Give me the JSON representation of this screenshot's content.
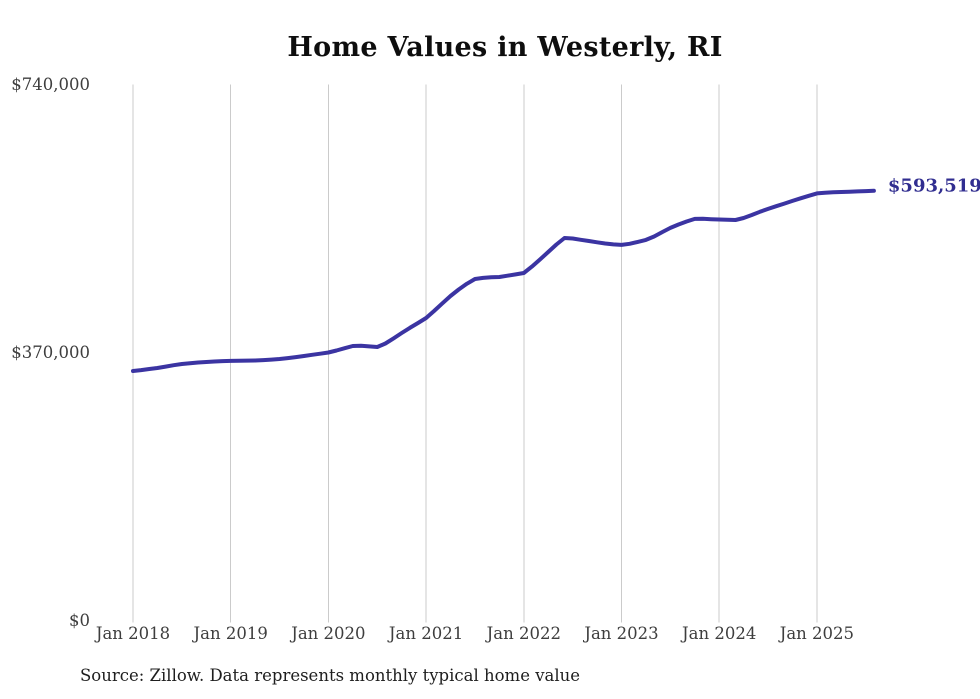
{
  "title": "Home Values in Westerly, RI",
  "source": "Source: Zillow. Data represents monthly typical home value",
  "colors": {
    "line": "#3b34a2",
    "end_label_text": "#312e90",
    "grid": "#cbcbcb",
    "axis_text": "#3e3e3e",
    "title_text": "#0e0e0e",
    "source_text": "#1e1e1e",
    "background": "#ffffff"
  },
  "chart_data": {
    "type": "line",
    "title": "Home Values in Westerly, RI",
    "xlabel": "",
    "ylabel": "",
    "frequency": "monthly",
    "x_start": "Jan 2018",
    "x_end": "Aug 2025",
    "x_tick_labels": [
      "Jan 2018",
      "Jan 2019",
      "Jan 2020",
      "Jan 2021",
      "Jan 2022",
      "Jan 2023",
      "Jan 2024",
      "Jan 2025"
    ],
    "y_ticks": [
      {
        "value": 0,
        "label": "$0"
      },
      {
        "value": 370000,
        "label": "$370,000"
      },
      {
        "value": 740000,
        "label": "$740,000"
      }
    ],
    "ylim": [
      0,
      740000
    ],
    "grid": "vertical-only",
    "legend": "none",
    "last_point_label": "$593,519",
    "last_point_value": 593519,
    "series": [
      {
        "name": "Typical home value",
        "values": [
          345100,
          346400,
          347900,
          349300,
          351200,
          353100,
          354800,
          355900,
          356800,
          357500,
          358200,
          358700,
          359000,
          359200,
          359400,
          359600,
          360200,
          360900,
          361700,
          362900,
          364300,
          365800,
          367400,
          369000,
          370600,
          373400,
          376600,
          379600,
          379800,
          379000,
          378200,
          383000,
          390000,
          397500,
          404500,
          411300,
          418200,
          428000,
          438500,
          448500,
          457500,
          465300,
          471900,
          473500,
          474200,
          474700,
          476500,
          478300,
          480200,
          489000,
          499000,
          509200,
          519500,
          528500,
          527800,
          526000,
          524300,
          522500,
          520800,
          519600,
          518900,
          520500,
          523000,
          525800,
          530500,
          536500,
          542300,
          547000,
          551200,
          554700,
          554900,
          554400,
          554000,
          553600,
          553300,
          556000,
          560200,
          564500,
          568500,
          572200,
          575800,
          579500,
          583100,
          586600,
          589900,
          590800,
          591400,
          591900,
          592300,
          592700,
          593100,
          593519
        ]
      }
    ]
  }
}
